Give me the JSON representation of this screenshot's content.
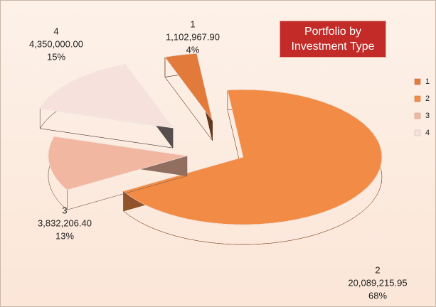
{
  "chart_data": {
    "type": "pie3d",
    "title": "Portfolio by Investment Type",
    "categories": [
      "1",
      "2",
      "3",
      "4"
    ],
    "values": [
      1102967.9,
      20089215.95,
      3832206.4,
      4350000.0
    ],
    "value_labels": [
      "1,102,967.90",
      "20,089,215.95",
      "3,832,206.40",
      "4,350,000.00"
    ],
    "percent_labels": [
      "4%",
      "68%",
      "13%",
      "15%"
    ],
    "colors": [
      "#e27a3c",
      "#f28b45",
      "#f2b7a0",
      "#f7e1dc"
    ],
    "legend": "right"
  }
}
